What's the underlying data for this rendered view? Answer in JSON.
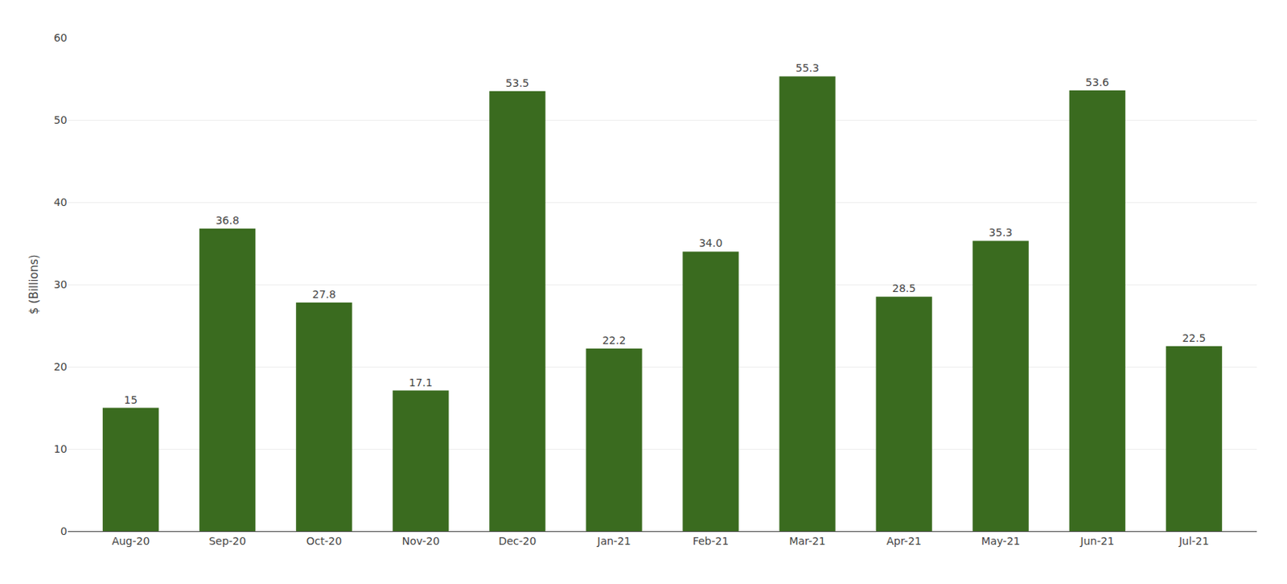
{
  "chart_data": {
    "type": "bar",
    "categories": [
      "Aug-20",
      "Sep-20",
      "Oct-20",
      "Nov-20",
      "Dec-20",
      "Jan-21",
      "Feb-21",
      "Mar-21",
      "Apr-21",
      "May-21",
      "Jun-21",
      "Jul-21"
    ],
    "values": [
      15.0,
      36.8,
      27.8,
      17.1,
      53.5,
      22.2,
      34.0,
      55.3,
      28.5,
      35.3,
      53.6,
      22.5
    ],
    "value_labels": [
      "15",
      "36.8",
      "27.8",
      "17.1",
      "53.5",
      "22.2",
      "34.0",
      "55.3",
      "28.5",
      "35.3",
      "53.6",
      "22.5"
    ],
    "data_labels": true,
    "color": "#3a6b1f",
    "ylabel": "$ (Billions)",
    "ylim": [
      0,
      60
    ],
    "yticks": [
      0,
      10,
      20,
      30,
      40,
      50,
      60
    ],
    "grid": true
  }
}
